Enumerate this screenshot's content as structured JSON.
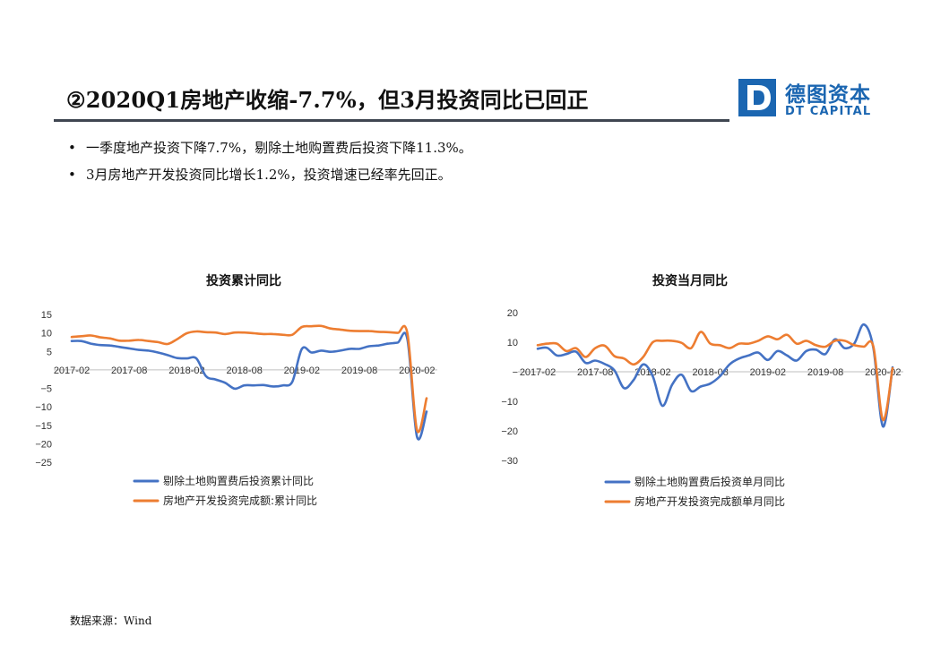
{
  "header": {
    "title": "②2020Q1房地产收缩-7.7%，但3月投资同比已回正",
    "logo_cn": "德图资本",
    "logo_en": "DT CAPITAL",
    "logo_letter": "D"
  },
  "bullets": [
    "一季度地产投资下降7.7%，剔除土地购置费后投资下降11.3%。",
    "3月房地产开发投资同比增长1.2%，投资增速已经率先回正。"
  ],
  "bullet_symbol": "•",
  "source": "数据来源：Wind",
  "colors": {
    "blue": "#4472c4",
    "orange": "#ed7d31",
    "brand": "#1b66b1",
    "axis": "#bfbfbf"
  },
  "chart_data": [
    {
      "type": "line",
      "title": "投资累计同比",
      "ylim": [
        -25,
        15
      ],
      "yticks": [
        15,
        10,
        5,
        0,
        -5,
        -10,
        -15,
        -20,
        -25
      ],
      "ytick_labels": [
        "15",
        "10",
        "5",
        "",
        "−5",
        "−10",
        "−15",
        "−20",
        "−25"
      ],
      "xtick_labels": [
        "2017-02",
        "2017-08",
        "2018-02",
        "2018-08",
        "2019-02",
        "2019-08",
        "2020-02"
      ],
      "legend_position": "bottom",
      "grid": false,
      "series": [
        {
          "name": "剔除土地购置费后投资累计同比",
          "color": "#4472c4",
          "values": [
            7.8,
            7.8,
            7.1,
            6.7,
            6.6,
            6.2,
            5.8,
            5.4,
            5.2,
            4.7,
            4.0,
            3.2,
            3.1,
            3.1,
            -1.7,
            -2.6,
            -3.5,
            -5.1,
            -4.2,
            -4.2,
            -4.1,
            -4.5,
            -4.2,
            -3.2,
            5.7,
            4.7,
            5.2,
            4.9,
            5.2,
            5.7,
            5.7,
            6.4,
            6.6,
            7.1,
            7.4,
            8.3,
            -18.1,
            -11.3
          ]
        },
        {
          "name": "房地产开发投资完成额:累计同比",
          "color": "#ed7d31",
          "values": [
            8.9,
            9.1,
            9.3,
            8.8,
            8.5,
            7.9,
            7.9,
            8.1,
            7.8,
            7.5,
            7.0,
            8.3,
            9.9,
            10.4,
            10.2,
            10.1,
            9.7,
            10.1,
            10.1,
            9.9,
            9.7,
            9.7,
            9.5,
            9.5,
            11.6,
            11.8,
            11.9,
            11.2,
            10.9,
            10.6,
            10.5,
            10.5,
            10.3,
            10.2,
            10.0,
            9.9,
            -16.3,
            -7.7
          ]
        }
      ]
    },
    {
      "type": "line",
      "title": "投资当月同比",
      "ylim": [
        -30,
        20
      ],
      "yticks": [
        20,
        10,
        0,
        -10,
        -20,
        -30
      ],
      "ytick_labels": [
        "20",
        "10",
        "−",
        "−10",
        "−20",
        "−30"
      ],
      "xtick_labels": [
        "2017-02",
        "2017-08",
        "2018-02",
        "2018-08",
        "2019-02",
        "2019-08",
        "2020-02"
      ],
      "legend_position": "bottom",
      "grid": false,
      "series": [
        {
          "name": "剔除土地购置费后投资单月同比",
          "color": "#4472c4",
          "values": [
            7.8,
            8.1,
            5.5,
            6.0,
            6.8,
            3.0,
            3.8,
            2.6,
            0.5,
            -5.5,
            -2.8,
            2.5,
            -1.5,
            -11.5,
            -4.5,
            -1.0,
            -6.5,
            -5.0,
            -4.0,
            -1.5,
            2.5,
            4.5,
            5.5,
            6.5,
            4.0,
            7.0,
            5.5,
            3.8,
            7.0,
            7.5,
            6.0,
            11.0,
            8.0,
            9.5,
            16.0,
            8.0,
            -18.5,
            1.5
          ]
        },
        {
          "name": "房地产开发投资完成额单月同比",
          "color": "#ed7d31",
          "values": [
            9.0,
            9.5,
            9.5,
            7.0,
            8.0,
            5.0,
            8.0,
            8.8,
            5.3,
            4.5,
            2.5,
            5.0,
            10.0,
            10.5,
            10.5,
            9.8,
            8.0,
            13.5,
            9.5,
            9.0,
            8.0,
            9.5,
            9.5,
            10.5,
            12.0,
            11.0,
            12.5,
            9.5,
            10.5,
            9.0,
            8.5,
            10.5,
            10.5,
            9.0,
            8.5,
            8.5,
            -16.3,
            1.2
          ]
        }
      ]
    }
  ]
}
